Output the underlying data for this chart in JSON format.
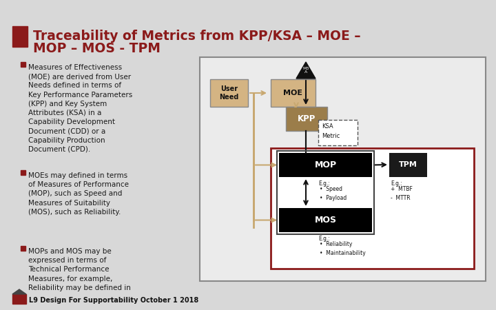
{
  "title_line1": "Traceability of Metrics from KPP/KSA – MOE –",
  "title_line2": "MOP – MOS - TPM",
  "title_color": "#8B1A1A",
  "bg_color": "#D8D8D8",
  "slide_bg": "#CCCCCC",
  "bullet_color": "#8B1A1A",
  "bullet1": "Measures of Effectiveness\n(MOE) are derived from User\nNeeds defined in terms of\nKey Performance Parameters\n(KPP) and Key System\nAttributes (KSA) in a\nCapability Development\nDocument (CDD) or a\nCapability Production\nDocument (CPD).",
  "bullet2": "MOEs may defined in terms\nof Measures of Performance\n(MOP), such as Speed and\nMeasures of Suitability\n(MOS), such as Reliability.",
  "bullet3": "MOPs and MOS may be\nexpressed in terms of\nTechnical Performance\nMeasures, for example,\nReliability may be defined in",
  "footer": "L9 Design For Supportability October 1 2018",
  "diagram_border_outer": "#888888",
  "diagram_border_inner": "#8B1A1A",
  "user_need_color": "#D4B483",
  "moe_color": "#D4B483",
  "kpp_color": "#9B7D4A",
  "mop_color": "#000000",
  "mos_color": "#000000",
  "tpm_color": "#1A1A1A",
  "ksa_metric_border": "#555555",
  "arrow_color": "#C8A870",
  "red_bar_color": "#8B1A1A"
}
